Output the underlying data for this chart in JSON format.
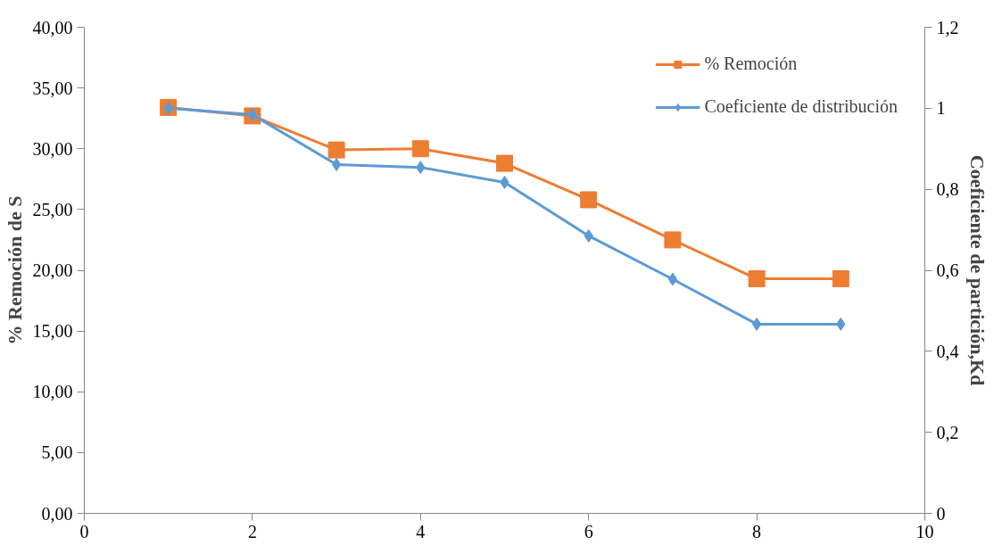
{
  "chart_data": {
    "type": "line",
    "xlabel": null,
    "ylabel": "% Remoción de S",
    "y2label": "Coeficiente de partición,Kd",
    "x": [
      1,
      2,
      3,
      4,
      5,
      6,
      7,
      8,
      9
    ],
    "xlim": [
      0,
      10
    ],
    "xticks": [
      0,
      2,
      4,
      6,
      8,
      10
    ],
    "ylim": [
      0,
      40
    ],
    "yticks": [
      {
        "value": 0,
        "label": "0,00"
      },
      {
        "value": 5,
        "label": "5,00"
      },
      {
        "value": 10,
        "label": "10,00"
      },
      {
        "value": 15,
        "label": "15,00"
      },
      {
        "value": 20,
        "label": "20,00"
      },
      {
        "value": 25,
        "label": "25,00"
      },
      {
        "value": 30,
        "label": "30,00"
      },
      {
        "value": 35,
        "label": "35,00"
      },
      {
        "value": 40,
        "label": "40,00"
      }
    ],
    "y2lim": [
      0,
      1.2
    ],
    "y2ticks": [
      0,
      {
        "value": 0.2,
        "label": "0,2"
      },
      {
        "value": 0.4,
        "label": "0,4"
      },
      {
        "value": 0.6,
        "label": "0,6"
      },
      {
        "value": 0.8,
        "label": "0,8"
      },
      1,
      {
        "value": 1.2,
        "label": "1,2"
      }
    ],
    "series": [
      {
        "name": "% Remoción",
        "color": "#ed7d31",
        "marker": "square",
        "values": [
          33.4,
          32.7,
          29.9,
          30.0,
          28.8,
          25.8,
          22.5,
          19.3,
          19.3
        ]
      },
      {
        "name": "Coeficiente de distribución",
        "color": "#5b9bd5",
        "marker": "diamond",
        "axis": "y2",
        "values": [
          1.0,
          0.984,
          0.861,
          0.854,
          0.817,
          0.685,
          0.578,
          0.467,
          0.467
        ]
      }
    ],
    "grid": false,
    "legend": "top right",
    "line_style": "solid"
  }
}
